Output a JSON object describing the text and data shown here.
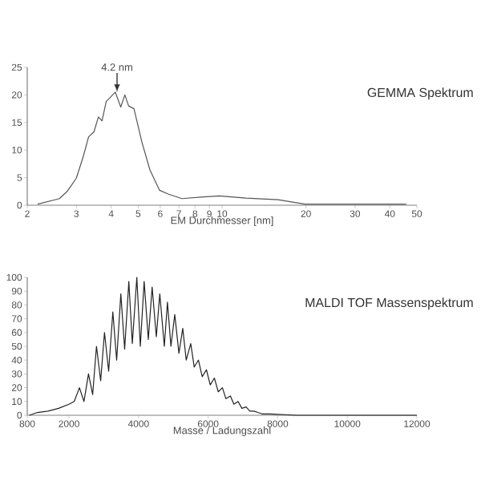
{
  "chart_data": [
    {
      "type": "line",
      "title": "GEMMA Spektrum",
      "xlabel": "EM Durchmesser [nm]",
      "log": "x",
      "xlim": [
        2,
        50
      ],
      "xticks": [
        2,
        3,
        4,
        5,
        6,
        7,
        8,
        9,
        10,
        20,
        30,
        40,
        50
      ],
      "ylim": [
        0,
        25
      ],
      "yticks": [
        0,
        5,
        10,
        15,
        20,
        25
      ],
      "annotations": [
        {
          "text": "4.2 nm",
          "x": 4.2,
          "y": 20.5
        }
      ],
      "series": [
        {
          "color": "#555555",
          "x": [
            2.18,
            2.61,
            2.78,
            3.0,
            3.18,
            3.32,
            3.47,
            3.6,
            3.71,
            3.84,
            3.96,
            4.14,
            4.33,
            4.48,
            4.62,
            4.83,
            5.16,
            5.51,
            5.97,
            6.43,
            7.18,
            8.57,
            9.78,
            12.2,
            15.9,
            19.8,
            28.2,
            45.8
          ],
          "values": [
            0.2,
            1.2,
            2.5,
            4.9,
            8.9,
            12.4,
            13.3,
            16,
            15.3,
            18.8,
            19.5,
            20.5,
            17.8,
            20,
            18,
            17.5,
            11.4,
            6.4,
            2.7,
            2.0,
            1.2,
            1.5,
            1.7,
            1.3,
            1.0,
            0.2,
            0.2,
            0.2
          ]
        }
      ]
    },
    {
      "type": "line",
      "title": "MALDI TOF Massenspektrum",
      "xlabel": "Masse / Ladungszahl",
      "xlim": [
        800,
        12000
      ],
      "xticks": [
        800,
        2000,
        4000,
        6000,
        8000,
        10000,
        12000
      ],
      "ylim": [
        0,
        100
      ],
      "yticks": [
        0,
        10,
        20,
        30,
        40,
        50,
        60,
        70,
        80,
        90,
        100
      ],
      "series": [
        {
          "color": "#222222",
          "x": [
            860,
            1090,
            1390,
            1700,
            2000,
            2150,
            2300,
            2430,
            2560,
            2680,
            2790,
            2910,
            3020,
            3140,
            3260,
            3370,
            3490,
            3600,
            3720,
            3820,
            3950,
            4050,
            4160,
            4280,
            4390,
            4510,
            4610,
            4740,
            4830,
            4930,
            5040,
            5160,
            5270,
            5370,
            5500,
            5600,
            5720,
            5830,
            5950,
            6060,
            6180,
            6290,
            6410,
            6510,
            6640,
            6740,
            6860,
            6970,
            7090,
            7200,
            7320,
            7430,
            7550,
            7660,
            7780,
            8540,
            9300,
            12000
          ],
          "values": [
            0,
            2,
            3,
            5,
            8,
            10,
            20,
            10,
            30,
            15,
            50,
            25,
            60,
            32,
            75,
            40,
            88,
            48,
            97,
            52,
            100,
            50,
            97,
            55,
            93,
            57,
            88,
            50,
            82,
            50,
            73,
            45,
            63,
            40,
            52,
            35,
            40,
            28,
            33,
            22,
            27,
            17,
            20,
            12,
            14,
            8,
            10,
            5,
            6,
            3,
            3,
            2,
            1,
            1,
            1,
            0,
            0,
            0
          ]
        }
      ]
    }
  ]
}
